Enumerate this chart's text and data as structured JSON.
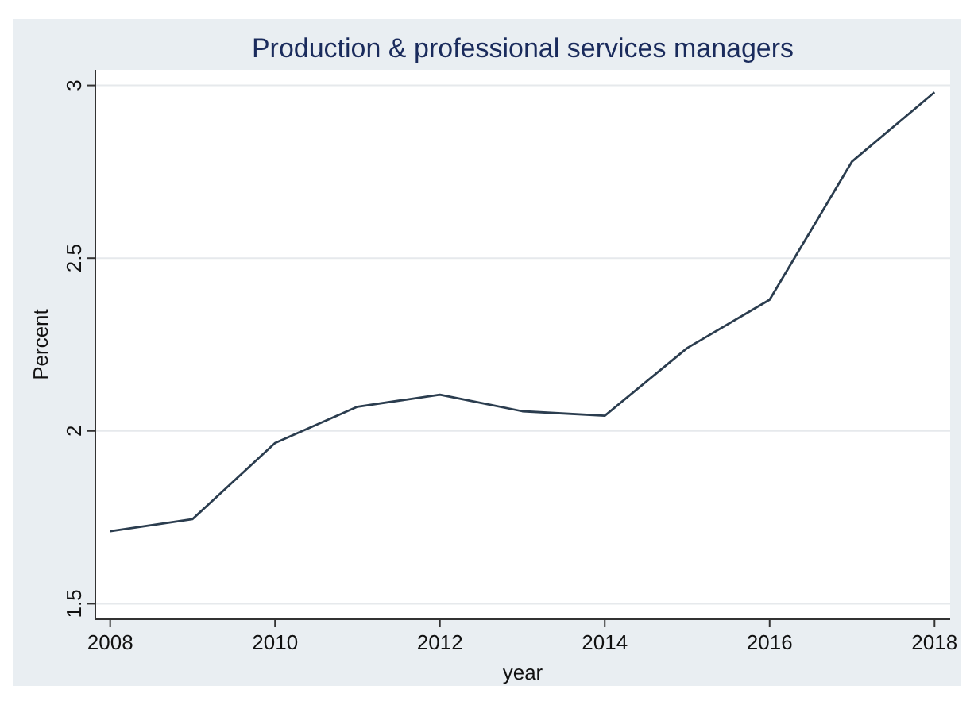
{
  "chart_data": {
    "type": "line",
    "title": "Production & professional services managers",
    "xlabel": "year",
    "ylabel": "Percent",
    "x": [
      2008,
      2009,
      2010,
      2011,
      2012,
      2013,
      2014,
      2015,
      2016,
      2017,
      2018
    ],
    "series": [
      {
        "color": "#2b3d4f",
        "values": [
          1.71,
          1.745,
          1.965,
          2.07,
          2.105,
          2.057,
          2.044,
          2.24,
          2.38,
          2.78,
          2.98
        ]
      }
    ],
    "xlim": [
      2007.82,
      2018.19
    ],
    "xticks": [
      2008,
      2010,
      2012,
      2014,
      2016,
      2018
    ],
    "ylim": [
      1.455,
      3.045
    ],
    "yticks": [
      1.5,
      {
        "value": 2,
        "label": "2"
      },
      2.5,
      {
        "value": 3,
        "label": "3"
      }
    ],
    "grid": "y",
    "marker": "none",
    "line_style": "solid"
  }
}
